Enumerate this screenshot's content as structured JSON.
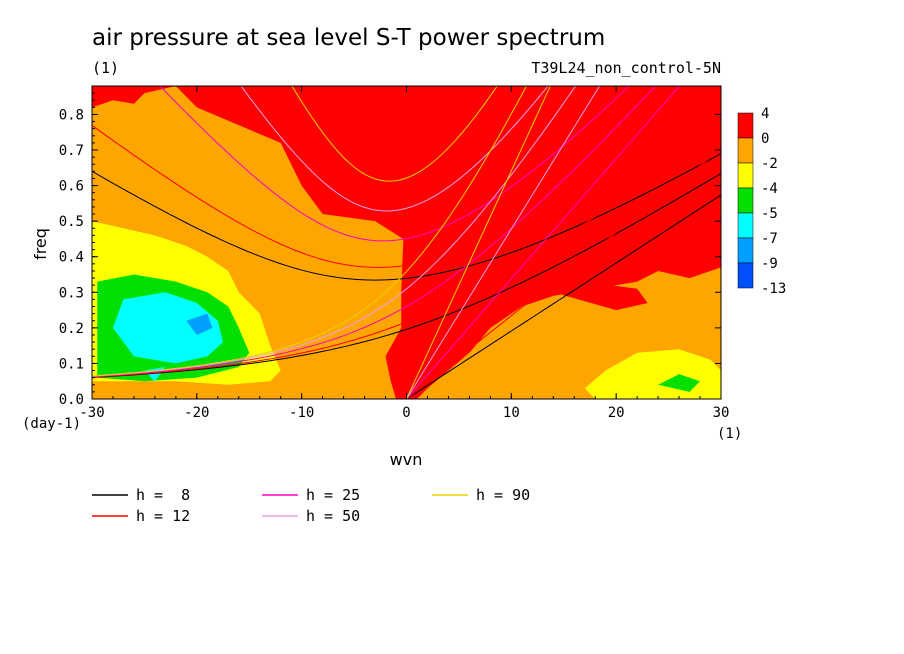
{
  "chart_data": {
    "type": "heatmap",
    "title": "air pressure at sea level S-T power spectrum",
    "units_label": "(1)",
    "experiment": "T39L24_non_control-5N",
    "xlabel": "wvn",
    "ylabel": "freq",
    "x_unit": "(1)",
    "y_unit": "(day-1)",
    "xlim": [
      -30,
      30
    ],
    "ylim": [
      0,
      0.88
    ],
    "x_ticks": [
      "-30",
      "-20",
      "-10",
      "0",
      "10",
      "20",
      "30"
    ],
    "y_ticks": [
      "0.0",
      "0.1",
      "0.2",
      "0.3",
      "0.4",
      "0.5",
      "0.6",
      "0.7",
      "0.8"
    ],
    "colorbar": {
      "labels": [
        "4",
        "0",
        "-2",
        "-4",
        "-5",
        "-7",
        "-9",
        "-13"
      ],
      "colors": [
        "#ff0000",
        "#ffa500",
        "#ffff00",
        "#00e000",
        "#00ffff",
        "#00a0ff",
        "#0050ff"
      ]
    },
    "regions": [
      {
        "level": "0 to 4",
        "color": "#ff0000",
        "description_points": [
          [
            -10,
            0.88
          ],
          [
            30,
            0.88
          ],
          [
            30,
            0.3
          ],
          [
            10,
            0.3
          ],
          [
            0,
            0
          ]
        ]
      },
      {
        "level": "-2 to 0",
        "color": "#ffa500"
      },
      {
        "level": "-4 to -2",
        "color": "#ffff00"
      },
      {
        "level": "-5 to -4",
        "color": "#00e000"
      },
      {
        "level": "-7 to -5",
        "color": "#00ffff"
      },
      {
        "level": "-9 to -7",
        "color": "#00a0ff"
      }
    ],
    "series": [
      {
        "name": "h =  8",
        "color": "#000000"
      },
      {
        "name": "h = 12",
        "color": "#ff0000"
      },
      {
        "name": "h = 25",
        "color": "#ff00c0"
      },
      {
        "name": "h = 50",
        "color": "#e8a0e8"
      },
      {
        "name": "h = 90",
        "color": "#e8d000"
      }
    ],
    "dispersion_h": [
      8,
      12,
      25,
      50,
      90
    ],
    "grid": false,
    "legend_position": "bottom"
  }
}
